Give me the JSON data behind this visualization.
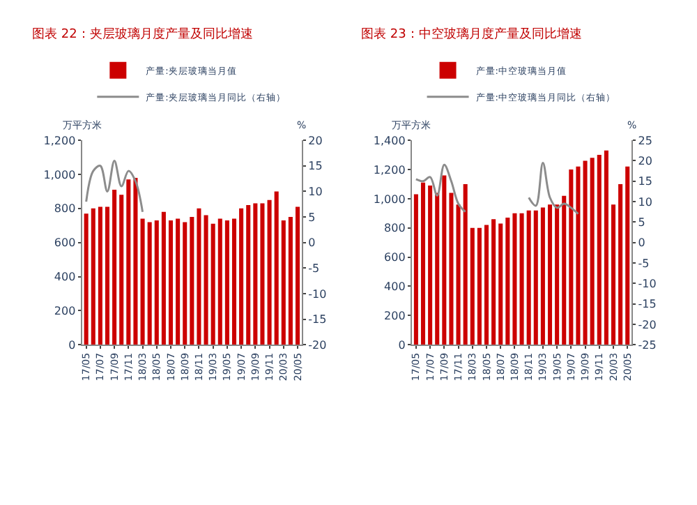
{
  "chart_data": [
    {
      "type": "bar",
      "title": "图表 22：夹层玻璃月度产量及同比增速",
      "ylabel": "万平方米",
      "y2label": "%",
      "categories": [
        "17/05",
        null,
        "17/07",
        null,
        "17/09",
        null,
        "17/11",
        null,
        "18/03",
        null,
        "18/05",
        null,
        "18/07",
        null,
        "18/09",
        null,
        "18/11",
        null,
        "19/03",
        null,
        "19/05",
        null,
        "19/07",
        null,
        "19/09",
        null,
        "19/11",
        null,
        "20/03",
        null,
        "20/05"
      ],
      "series": [
        {
          "name": "产量:夹层玻璃当月值",
          "color": "#cc0000",
          "values": [
            770,
            800,
            810,
            810,
            910,
            880,
            970,
            980,
            740,
            720,
            730,
            780,
            730,
            740,
            720,
            750,
            800,
            760,
            710,
            740,
            730,
            740,
            800,
            820,
            830,
            830,
            850,
            900,
            730,
            750,
            810
          ]
        },
        {
          "name": "产量:夹层玻璃当月同比（右轴）",
          "type": "line",
          "axis": "y2",
          "color": "#8c8c8c",
          "values": [
            8,
            14,
            15,
            10,
            16,
            11,
            14,
            12,
            6,
            null,
            null,
            null,
            null,
            null,
            null,
            null,
            null,
            null,
            null,
            null,
            null,
            null,
            null,
            null,
            null,
            null,
            null,
            null,
            null,
            null,
            null
          ]
        }
      ],
      "ylim": [
        0,
        1200
      ],
      "yticks": [
        0,
        200,
        400,
        600,
        800,
        {
          "value": 1000,
          "label": "1,000"
        },
        {
          "value": 1200,
          "label": "1,200"
        }
      ],
      "y2lim": [
        -20,
        20
      ],
      "y2ticks": [
        -20,
        -15,
        -10,
        -5,
        0,
        5,
        10,
        15,
        20
      ],
      "legend": "top"
    },
    {
      "type": "bar",
      "title": "图表 23：中空玻璃月度产量及同比增速",
      "ylabel": "万平方米",
      "y2label": "%",
      "categories": [
        "17/05",
        null,
        "17/07",
        null,
        "17/09",
        null,
        "17/11",
        null,
        "18/03",
        null,
        "18/05",
        null,
        "18/07",
        null,
        "18/09",
        null,
        "18/11",
        null,
        "19/03",
        null,
        "19/05",
        null,
        "19/07",
        null,
        "19/09",
        null,
        "19/11",
        null,
        "20/03",
        null,
        "20/05"
      ],
      "series": [
        {
          "name": "产量:中空玻璃当月值",
          "color": "#cc0000",
          "values": [
            1030,
            1110,
            1090,
            1040,
            1160,
            1040,
            960,
            1100,
            800,
            800,
            820,
            860,
            830,
            870,
            900,
            900,
            920,
            920,
            940,
            960,
            960,
            1020,
            1200,
            1220,
            1260,
            1280,
            1300,
            1330,
            960,
            1100,
            1220
          ]
        },
        {
          "name": "产量:中空玻璃当月同比（右轴）",
          "type": "line",
          "axis": "y2",
          "color": "#8c8c8c",
          "values": [
            15.5,
            15,
            16,
            11.5,
            19,
            15,
            9.5,
            7.5,
            null,
            null,
            null,
            null,
            null,
            null,
            null,
            null,
            11,
            9,
            19.5,
            11,
            8.5,
            9.5,
            8.5,
            7,
            null,
            null,
            null,
            null,
            null,
            null,
            null
          ]
        }
      ],
      "ylim": [
        0,
        1400
      ],
      "yticks": [
        0,
        200,
        400,
        600,
        800,
        {
          "value": 1000,
          "label": "1,000"
        },
        {
          "value": 1200,
          "label": "1,200"
        },
        {
          "value": 1400,
          "label": "1,400"
        }
      ],
      "y2lim": [
        -25,
        25
      ],
      "y2ticks": [
        -25,
        -20,
        -15,
        -10,
        -5,
        0,
        5,
        10,
        15,
        20,
        25
      ],
      "legend": "top"
    }
  ]
}
